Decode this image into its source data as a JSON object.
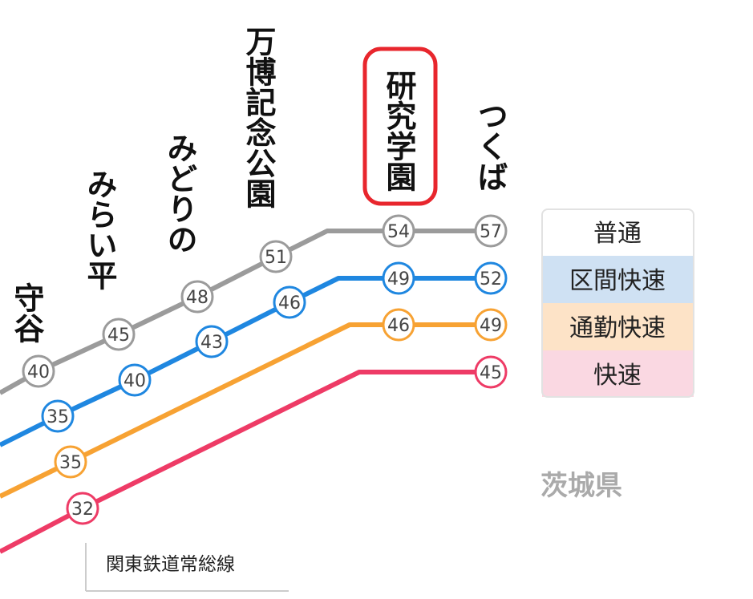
{
  "colors": {
    "local": "#9b9b9b",
    "section_rapid": "#1f87e0",
    "commuter_rapid": "#f7a233",
    "rapid": "#ee3b66",
    "highlight": "#e8262d",
    "legend_local_bg": "#ffffff",
    "legend_section_rapid_bg": "#cfe1f3",
    "legend_commuter_rapid_bg": "#fde3c7",
    "legend_rapid_bg": "#fad8e2"
  },
  "stations": [
    {
      "id": "moriya",
      "name": "守谷"
    },
    {
      "id": "miraidaira",
      "name": "みらい平"
    },
    {
      "id": "midorino",
      "name": "みどりの"
    },
    {
      "id": "banpaku",
      "name": "万博記念公園"
    },
    {
      "id": "kenkyu",
      "name": "研究学園",
      "highlighted": true
    },
    {
      "id": "tsukuba",
      "name": "つくば"
    }
  ],
  "services": [
    {
      "id": "local",
      "label": "普通",
      "times": [
        "40",
        "45",
        "48",
        "51",
        "54",
        "57"
      ]
    },
    {
      "id": "section_rapid",
      "label": "区間快速",
      "times": [
        "35",
        "40",
        "43",
        "46",
        "49",
        "52"
      ]
    },
    {
      "id": "commuter_rapid",
      "label": "通勤快速",
      "times": [
        "35",
        "46",
        "49"
      ]
    },
    {
      "id": "rapid",
      "label": "快速",
      "times": [
        "32",
        "45"
      ]
    }
  ],
  "region_label": "茨城県",
  "connecting_line_label": "関東鉄道常総線"
}
